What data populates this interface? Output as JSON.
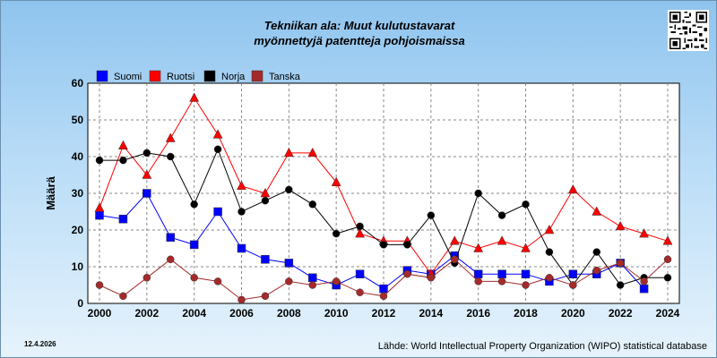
{
  "header": {
    "title_line1": "Tekniikan ala: Muut kulutustavarat",
    "title_line2": "myönnettyjä patentteja pohjoismaissa"
  },
  "footer": {
    "date": "12.4.2026",
    "source": "Lähde: World Intellectual Property Organization (WIPO) statistical database"
  },
  "chart_data": {
    "type": "line",
    "ylabel": "Määrä",
    "xlabel": "",
    "ylim": [
      0,
      60
    ],
    "xlim": [
      2000,
      2024
    ],
    "yticks": [
      0,
      10,
      20,
      30,
      40,
      50,
      60
    ],
    "xticks": [
      2000,
      2002,
      2004,
      2006,
      2008,
      2010,
      2012,
      2014,
      2016,
      2018,
      2020,
      2022,
      2024
    ],
    "grid": true,
    "legend_position": "top-left",
    "x": [
      2000,
      2001,
      2002,
      2003,
      2004,
      2005,
      2006,
      2007,
      2008,
      2009,
      2010,
      2011,
      2012,
      2013,
      2014,
      2015,
      2016,
      2017,
      2018,
      2019,
      2020,
      2021,
      2022,
      2023,
      2024
    ],
    "series": [
      {
        "name": "Suomi",
        "color": "#0000ff",
        "marker": "square",
        "values": [
          24,
          23,
          30,
          18,
          16,
          25,
          15,
          12,
          11,
          7,
          5,
          8,
          4,
          9,
          8,
          13,
          8,
          8,
          8,
          6,
          8,
          8,
          11,
          4,
          null
        ]
      },
      {
        "name": "Ruotsi",
        "color": "#ff0000",
        "marker": "triangle",
        "values": [
          26,
          43,
          35,
          45,
          56,
          46,
          32,
          30,
          41,
          41,
          33,
          19,
          17,
          17,
          8,
          17,
          15,
          17,
          15,
          20,
          31,
          25,
          21,
          19,
          17
        ]
      },
      {
        "name": "Norja",
        "color": "#000000",
        "marker": "circle",
        "values": [
          39,
          39,
          41,
          40,
          27,
          42,
          25,
          28,
          31,
          27,
          19,
          21,
          16,
          16,
          24,
          11,
          30,
          24,
          27,
          14,
          5,
          14,
          5,
          7,
          7
        ]
      },
      {
        "name": "Tanska",
        "color": "#a52a2a",
        "marker": "circle",
        "values": [
          5,
          2,
          7,
          12,
          7,
          6,
          1,
          2,
          6,
          5,
          6,
          3,
          2,
          8,
          7,
          12,
          6,
          6,
          5,
          7,
          5,
          9,
          11,
          6,
          12
        ]
      }
    ]
  }
}
